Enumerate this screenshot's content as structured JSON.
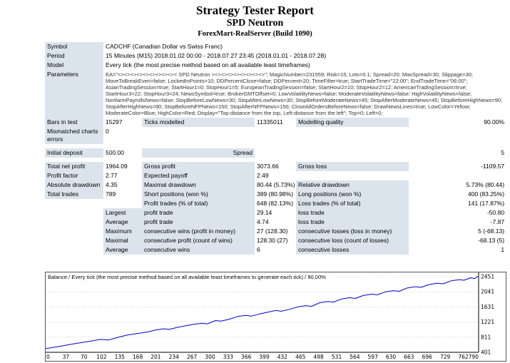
{
  "header": {
    "title": "Strategy Tester Report",
    "ea_name": "SPD Neutron",
    "server": "ForexMart-RealServer (Build 1090)"
  },
  "report": {
    "symbol": {
      "label": "Symbol",
      "value": "CADCHF (Canadian Dollar vs Swiss Franc)"
    },
    "period": {
      "label": "Period",
      "value": "15 Minutes (M15) 2018.01.02 00:00 - 2018.07.27 23:45 (2018.01.01 - 2018.07.28)"
    },
    "model": {
      "label": "Model",
      "value": "Every tick (the most precise method based on all available least timeframes)"
    },
    "parameters": {
      "label": "Parameters",
      "value": "EA=\"<><><><><><><><><>< SPD Neutron ><><><><><><><><>\"; MagicNumber=231559; Risk=15; Lots=0.1; Spread=20; MaxSpread=30; Slippage=30; MoveToBreakEven=false; LockedInPoints=10; DDPercentClose=false; DDPercent=20; TimeFilter=true; StartTradeTime=\"22:00\"; EndTradeTime=\"06:00\"; AsianTradingSession=true; StartHour1=0; StopHour1=5; EuropeanTradingSession=false; StartHour2=10; StopHour2=12; AmericanTradingSession=true; StartHour3=22; StopHour3=24; NewsSymbol=true; BrokerGMTOffset=0; LowVolatilityNews=false; ModerateVolatilityNews=false; HighVolatilityNews=false; NonfarmPayrollsNews=false; StopBeforeLowNews=30; StopAfterLowNews=30; StopBeforeModerateNews=45; StopAfterModerateNews=45; StopBeforeHighNews=90; StopAfterHighNews=90; StopBeforeNFPNews=150; StopAfterNFPNews=150; CloseAllOrdersBeforeNews=false; DrawNewsLines=true; LowColor=Yellow; ModerateColor=Blue; HighColor=Red; Display=\"Top-distance from the top, Left-distance from the left\"; Top=0; Left=0;"
    },
    "bars": {
      "label": "Bars in test",
      "value": "15297",
      "label2": "Ticks modelled",
      "value2": "11335011",
      "label3": "Modelling quality",
      "value3": "90.00%"
    },
    "mismatched": {
      "label": "Mismatched charts errors",
      "value": "0"
    },
    "deposit": {
      "label": "Initial deposit",
      "value": "500.00",
      "label2": "Spread",
      "value2": "5"
    },
    "net_profit": {
      "label": "Total net profit",
      "value": "1964.09",
      "label2": "Gross profit",
      "value2": "3073.66",
      "label3": "Gross loss",
      "value3": "-1109.57"
    },
    "profit_factor": {
      "label": "Profit factor",
      "value": "2.77",
      "label2": "Expected payoff",
      "value2": "2.49"
    },
    "drawdown": {
      "label": "Absolute drawdown",
      "value": "4.35",
      "label2": "Maximal drawdown",
      "value2": "80.44 (5.73%)",
      "label3": "Relative drawdown",
      "value3": "5.73% (80.44)"
    },
    "trades": {
      "label": "Total trades",
      "value": "789",
      "label2": "Short positions (won %)",
      "value2": "389 (80.98%)",
      "label3": "Long positions (won %)",
      "value3": "400 (83.25%)"
    },
    "trades_breakdown": {
      "label2": "Profit trades (% of total)",
      "value2": "648 (82.13%)",
      "label3": "Loss trades (% of total)",
      "value3": "141 (17.87%)"
    },
    "largest": {
      "group": "Largest",
      "label2": "profit trade",
      "value2": "29.14",
      "label3": "loss trade",
      "value3": "-50.80"
    },
    "average": {
      "group": "Average",
      "label2": "profit trade",
      "value2": "4.74",
      "label3": "loss trade",
      "value3": "-7.87"
    },
    "maximum": {
      "group": "Maximum",
      "label2": "consecutive wins (profit in money)",
      "value2": "27 (128.30)",
      "label3": "consecutive losses (loss in money)",
      "value3": "5 (-68.13)"
    },
    "maximal": {
      "group": "Maximal",
      "label2": "consecutive profit (count of wins)",
      "value2": "128.30 (27)",
      "label3": "consecutive loss (count of losses)",
      "value3": "-68.13 (5)"
    },
    "avg_consecutive": {
      "group": "Average",
      "label2": "consecutive wins",
      "value2": "6",
      "label3": "consecutive losses",
      "value3": "1"
    }
  },
  "chart_data": {
    "type": "line",
    "title": "Balance / Every tick (the most precise method based on all available least timeframes to generate each tick) / 90.00%",
    "xlim": [
      0,
      790
    ],
    "ylim": [
      401,
      2451
    ],
    "x_ticks": [
      0,
      37,
      70,
      102,
      135,
      168,
      201,
      234,
      267,
      300,
      333,
      366,
      399,
      432,
      465,
      498,
      531,
      564,
      597,
      630,
      663,
      696,
      729,
      762,
      790
    ],
    "y_ticks": [
      401,
      811,
      1221,
      1631,
      2041,
      2451
    ],
    "grid": "horizontal-dotted",
    "series": [
      {
        "name": "Balance",
        "color": "#0000c8",
        "x": [
          0,
          25,
          50,
          75,
          100,
          115,
          130,
          150,
          170,
          185,
          200,
          215,
          225,
          240,
          255,
          270,
          285,
          295,
          310,
          320,
          335,
          350,
          365,
          375,
          390,
          405,
          420,
          430,
          445,
          460,
          475,
          485,
          500,
          515,
          525,
          540,
          555,
          565,
          580,
          595,
          605,
          620,
          635,
          645,
          660,
          675,
          685,
          700,
          715,
          725,
          740,
          755,
          763,
          775,
          783,
          789
        ],
        "y": [
          500,
          560,
          628,
          685,
          752,
          735,
          800,
          872,
          915,
          950,
          1002,
          1040,
          1022,
          1075,
          1118,
          1160,
          1190,
          1172,
          1262,
          1248,
          1298,
          1372,
          1400,
          1382,
          1440,
          1490,
          1535,
          1515,
          1568,
          1632,
          1665,
          1648,
          1745,
          1780,
          1762,
          1848,
          1882,
          1862,
          1945,
          1978,
          1960,
          2040,
          2072,
          2055,
          2148,
          2180,
          2162,
          2240,
          2275,
          2258,
          2340,
          2372,
          2355,
          2420,
          2400,
          2464
        ]
      }
    ]
  }
}
